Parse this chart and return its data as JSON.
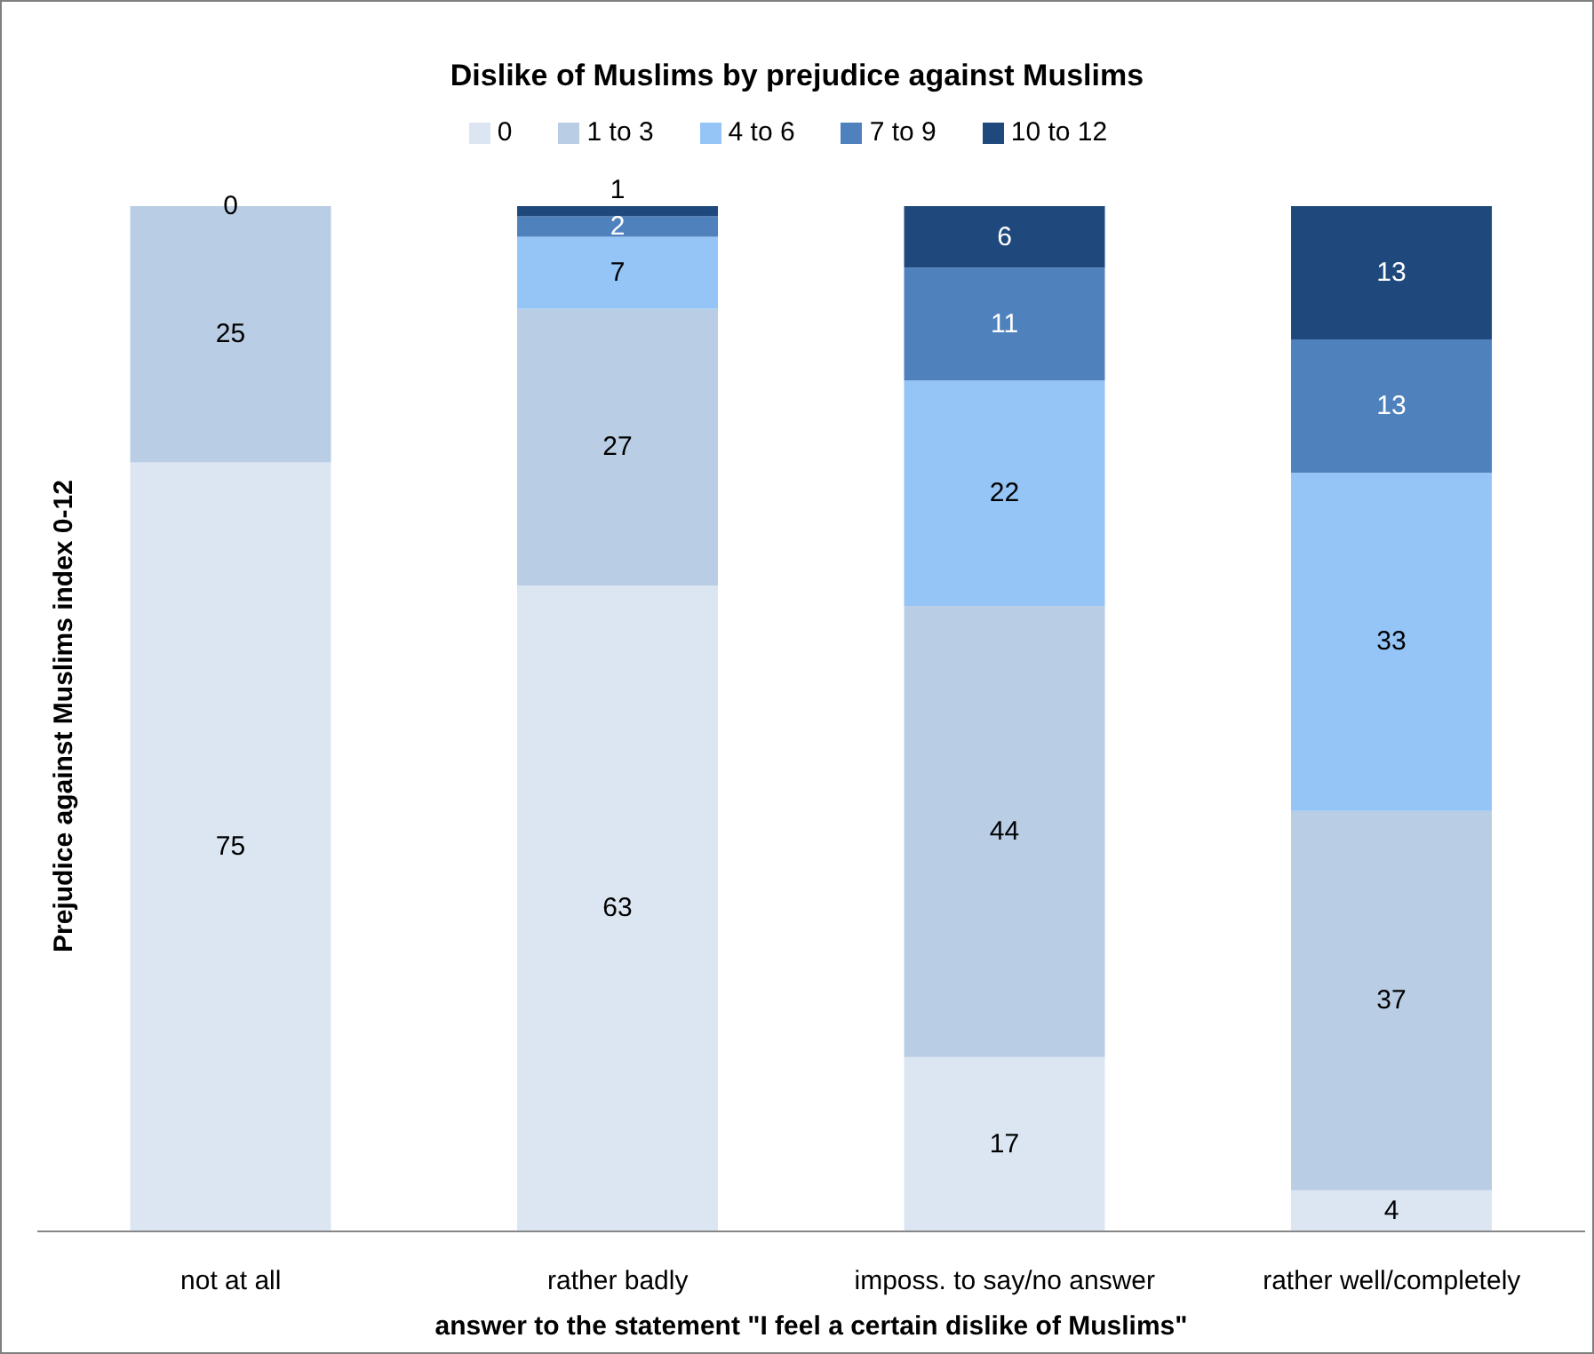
{
  "chart_data": {
    "type": "bar",
    "title": "Dislike of Muslims by prejudice against Muslims",
    "xlabel": "answer to the statement \"I feel a certain dislike of Muslims\"",
    "ylabel": "Prejudice against Muslims index 0-12",
    "categories": [
      "not at all",
      "rather badly",
      "imposs. to say/no answer",
      "rather well/completely"
    ],
    "series": [
      {
        "name": "0",
        "color": "#dce6f2",
        "values": [
          75,
          63,
          17,
          4
        ]
      },
      {
        "name": "1 to 3",
        "color": "#b9cde5",
        "values": [
          25,
          27,
          44,
          37
        ]
      },
      {
        "name": "4 to 6",
        "color": "#95c4f6",
        "values": [
          0,
          7,
          22,
          33
        ]
      },
      {
        "name": "7 to 9",
        "color": "#4f81bd",
        "values": [
          null,
          2,
          11,
          13
        ]
      },
      {
        "name": "10 to 12",
        "color": "#1f497d",
        "values": [
          null,
          1,
          6,
          13
        ]
      }
    ],
    "stacked": true,
    "tick_labels": "x",
    "data_labels": true,
    "legend": "top"
  }
}
